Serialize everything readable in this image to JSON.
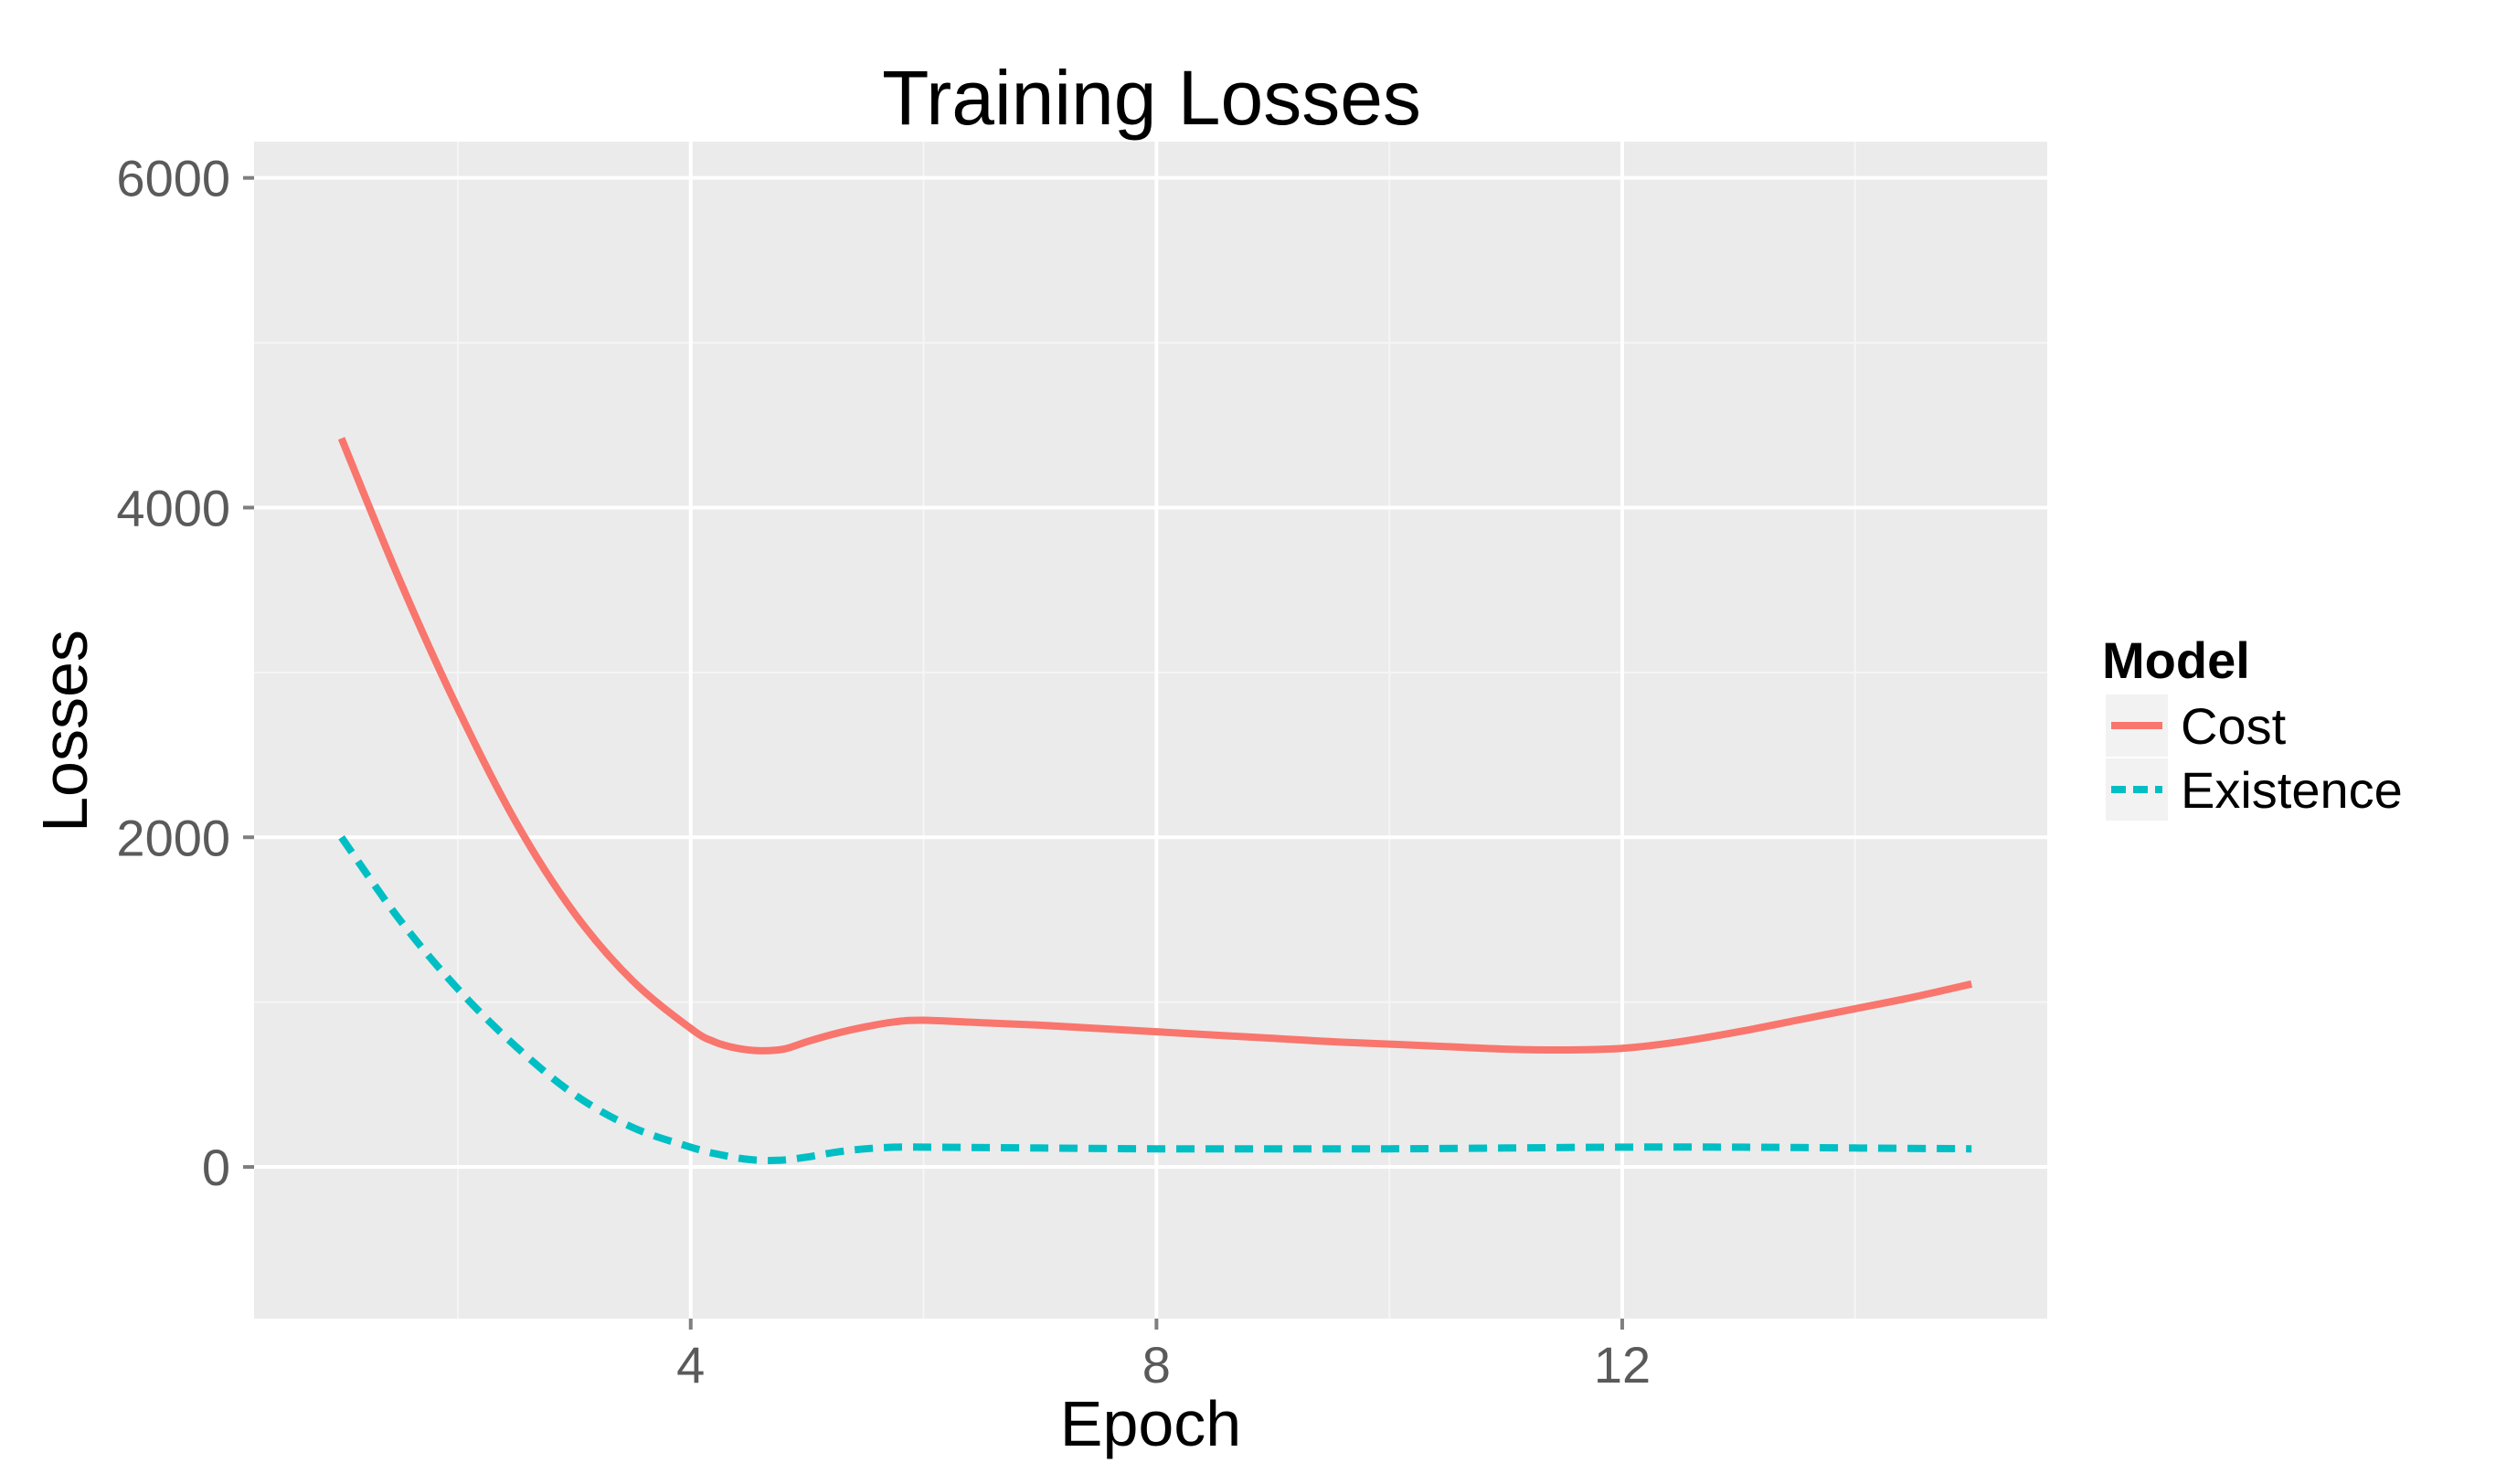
{
  "chart_data": {
    "type": "line",
    "title": "Training Losses",
    "xlabel": "Epoch",
    "ylabel": "Losses",
    "xlim": [
      0.25,
      15.65
    ],
    "ylim": [
      -920,
      6220
    ],
    "x_major_ticks": [
      4,
      8,
      12
    ],
    "x_tick_labels": [
      "4",
      "8",
      "12"
    ],
    "x_minor_ticks": [
      2,
      6,
      10,
      14
    ],
    "y_major_ticks": [
      0,
      2000,
      4000,
      6000
    ],
    "y_tick_labels": [
      "0",
      "2000",
      "4000",
      "6000"
    ],
    "y_minor_ticks": [
      1000,
      3000,
      5000
    ],
    "grid": true,
    "legend": {
      "title": "Model",
      "position": "right"
    },
    "series": [
      {
        "name": "Cost",
        "color": "#F8766D",
        "dash": "solid",
        "x": [
          1,
          1.5,
          2,
          2.5,
          3,
          3.5,
          4,
          4.2,
          4.4,
          4.6,
          4.8,
          5,
          5.25,
          5.5,
          5.75,
          6,
          6.5,
          7,
          7.5,
          8,
          8.5,
          9,
          9.5,
          10,
          10.5,
          11,
          11.5,
          12,
          12.5,
          13,
          13.5,
          14,
          14.5,
          15
        ],
        "y": [
          4420,
          3560,
          2780,
          2090,
          1540,
          1130,
          840,
          760,
          720,
          705,
          715,
          760,
          810,
          850,
          880,
          890,
          875,
          860,
          840,
          820,
          800,
          780,
          760,
          745,
          730,
          715,
          710,
          720,
          760,
          820,
          890,
          960,
          1030,
          1110
        ]
      },
      {
        "name": "Existence",
        "color": "#00BFC4",
        "dash": "dashed",
        "x": [
          1,
          1.5,
          2,
          2.5,
          3,
          3.5,
          4,
          4.25,
          4.5,
          4.75,
          5,
          5.25,
          5.5,
          5.75,
          6,
          7,
          8,
          9,
          10,
          11,
          12,
          13,
          14,
          15
        ],
        "y": [
          2000,
          1500,
          1080,
          730,
          440,
          240,
          120,
          75,
          45,
          40,
          60,
          90,
          110,
          120,
          120,
          115,
          110,
          110,
          110,
          115,
          120,
          120,
          115,
          110
        ]
      }
    ]
  }
}
